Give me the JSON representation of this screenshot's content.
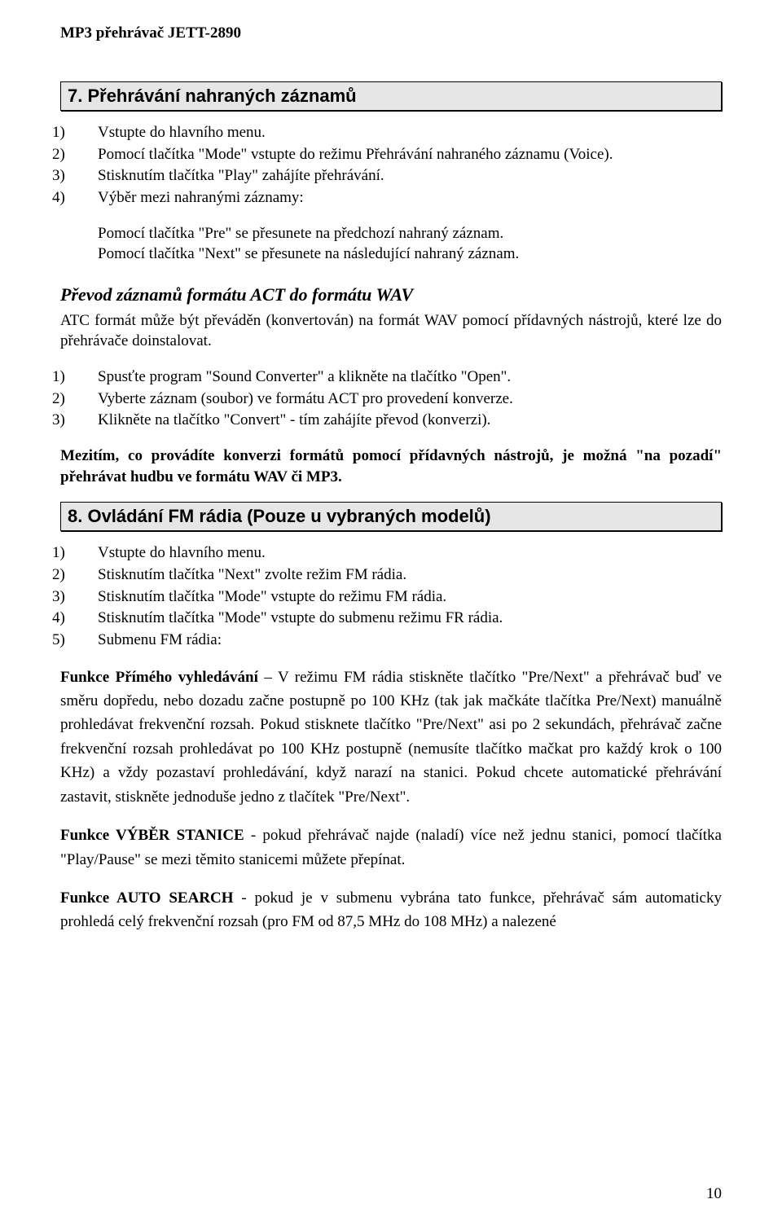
{
  "doc": {
    "header": "MP3 přehrávač JETT-2890",
    "page_number": "10"
  },
  "section7": {
    "title": "7. Přehrávání nahraných záznamů",
    "steps": [
      {
        "n": "1)",
        "t": "Vstupte do hlavního menu."
      },
      {
        "n": "2)",
        "t": "Pomocí tlačítka \"Mode\" vstupte do režimu Přehrávání nahraného záznamu (Voice)."
      },
      {
        "n": "3)",
        "t": "Stisknutím tlačítka \"Play\" zahájíte přehrávání."
      },
      {
        "n": "4)",
        "t": "Výběr mezi nahranými záznamy:"
      }
    ],
    "sub4a": "Pomocí tlačítka \"Pre\" se přesunete na předchozí nahraný záznam.",
    "sub4b": "Pomocí tlačítka \"Next\" se přesunete na následující nahraný záznam.",
    "conv_heading": "Převod záznamů formátu ACT do formátu WAV",
    "conv_intro": "ATC formát může být převáděn (konvertován) na formát WAV pomocí přídavných nástrojů, které lze do přehrávače doinstalovat.",
    "conv_steps": [
      {
        "n": "1)",
        "t": "Spusťte program \"Sound Converter\" a klikněte na tlačítko \"Open\"."
      },
      {
        "n": "2)",
        "t": "Vyberte záznam (soubor) ve formátu ACT pro provedení konverze."
      },
      {
        "n": "3)",
        "t": "Klikněte na tlačítko \"Convert\" - tím zahájíte převod (konverzi)."
      }
    ],
    "conv_note": "Mezitím, co provádíte konverzi formátů pomocí přídavných nástrojů, je možná \"na pozadí\" přehrávat hudbu ve formátu WAV či MP3."
  },
  "section8": {
    "title": "8. Ovládání FM rádia (Pouze u vybraných modelů)",
    "steps": [
      {
        "n": "1)",
        "t": "Vstupte do hlavního menu."
      },
      {
        "n": "2)",
        "t": "Stisknutím tlačítka \"Next\" zvolte režim FM rádia."
      },
      {
        "n": "3)",
        "t": "Stisknutím tlačítka \"Mode\" vstupte do režimu FM rádia."
      },
      {
        "n": "4)",
        "t": "Stisknutím tlačítka \"Mode\" vstupte do submenu režimu FR rádia."
      },
      {
        "n": "5)",
        "t": "Submenu FM rádia:"
      }
    ],
    "f1_label": "Funkce Přímého vyhledávání",
    "f1_text": " – V režimu FM rádia stiskněte tlačítko \"Pre/Next\" a přehrávač buď ve směru dopředu, nebo dozadu začne postupně po 100 KHz (tak jak mačkáte tlačítka Pre/Next) manuálně prohledávat frekvenční rozsah. Pokud stisknete tlačítko \"Pre/Next\" asi po 2 sekundách, přehrávač začne frekvenční rozsah prohledávat po 100 KHz postupně (nemusíte tlačítko mačkat pro každý krok o 100 KHz) a vždy pozastaví prohledávání, když narazí na stanici. Pokud chcete automatické přehrávání zastavit, stiskněte jednoduše jedno z tlačítek \"Pre/Next\".",
    "f2_label": "Funkce VÝBĚR STANICE",
    "f2_text": " - pokud přehrávač najde (naladí) více než jednu stanici, pomocí tlačítka \"Play/Pause\" se mezi těmito stanicemi můžete přepínat.",
    "f3_label": "Funkce AUTO SEARCH",
    "f3_text": " - pokud je v submenu vybrána tato funkce, přehrávač sám automaticky prohledá celý frekvenční rozsah (pro FM od 87,5 MHz do 108 MHz) a nalezené"
  }
}
